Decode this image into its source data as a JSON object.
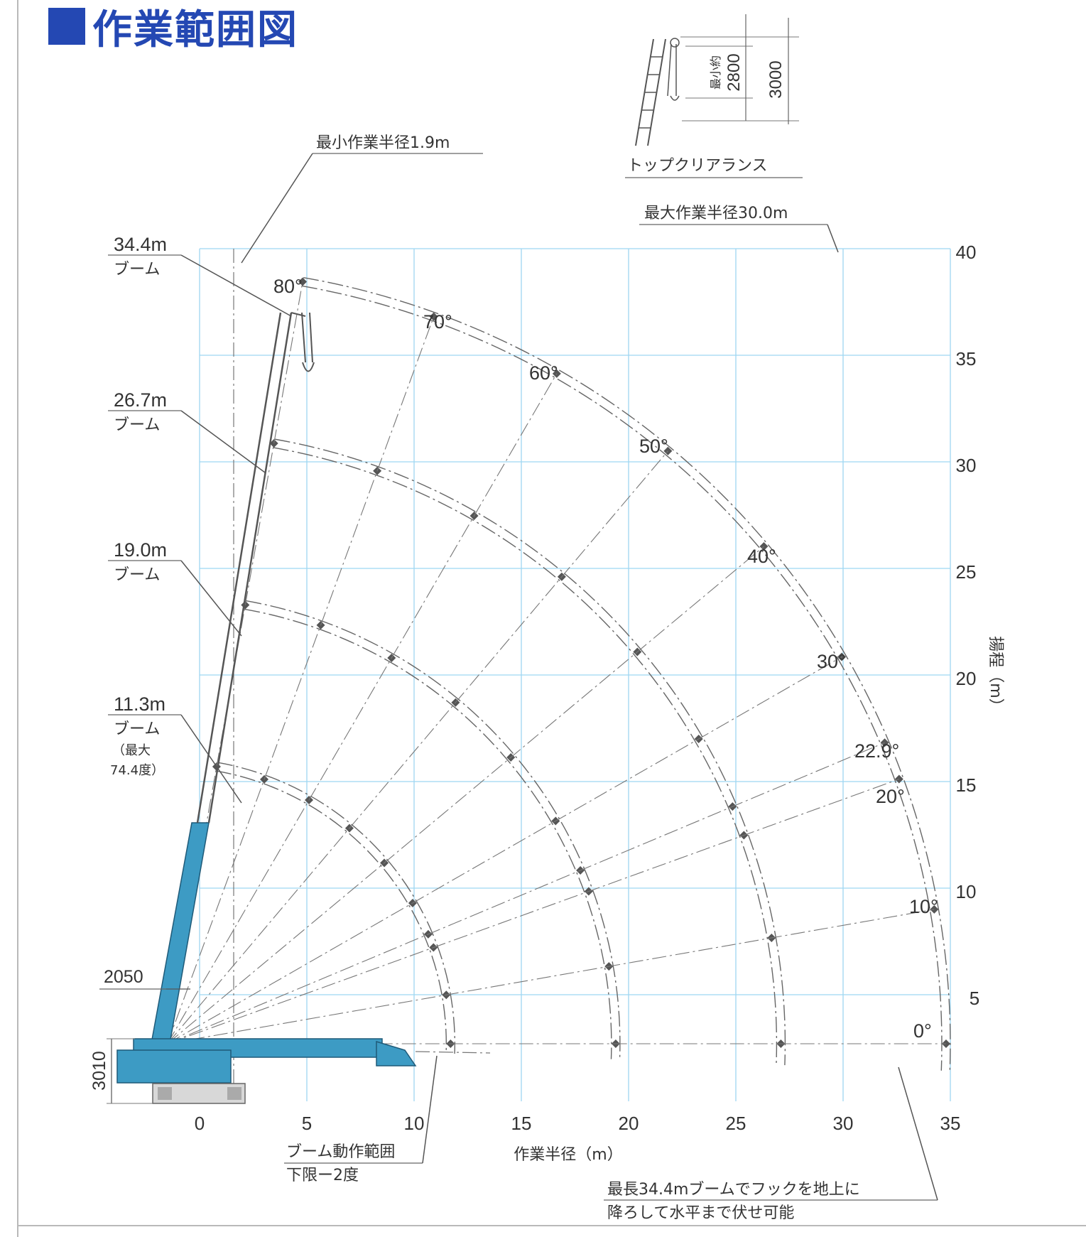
{
  "title": "作業範囲図",
  "chart_data": {
    "type": "diagram",
    "title": "作業範囲図",
    "xlabel": "作業半径（m）",
    "ylabel": "揚程（m）",
    "xlim": [
      0,
      35
    ],
    "ylim": [
      0,
      40
    ],
    "x_ticks": [
      "0",
      "5",
      "10",
      "15",
      "20",
      "25",
      "30",
      "35"
    ],
    "y_ticks": [
      "5",
      "10",
      "15",
      "20",
      "25",
      "30",
      "35",
      "40"
    ],
    "grid": true,
    "booms": [
      {
        "length": "34.4m",
        "label": "34.4m",
        "sub": "ブーム",
        "radius": 36.3
      },
      {
        "length": "26.7m",
        "label": "26.7m",
        "sub": "ブーム",
        "radius": 28.6
      },
      {
        "length": "19.0m",
        "label": "19.0m",
        "sub": "ブーム",
        "radius": 20.9
      },
      {
        "length": "11.3m",
        "label": "11.3m",
        "sub": "ブーム",
        "radius": 13.2,
        "note1": "（最大",
        "note2": "74.4度）"
      }
    ],
    "boom_pivot": [
      -1.5,
      2.7
    ],
    "boom_angles": [
      80,
      70,
      60,
      50,
      40,
      30,
      22.9,
      20,
      10,
      0
    ],
    "angle_labels": [
      "80°",
      "70°",
      "60°",
      "50°",
      "40°",
      "30°",
      "22.9°",
      "20°",
      "10°",
      "0°"
    ]
  },
  "annotations": {
    "min_radius": "最小作業半径1.9m",
    "max_radius": "最大作業半径30.0m",
    "top_clearance": "トップクリアランス",
    "clearance_min": "最小約",
    "clearance_a": "2800",
    "clearance_b": "3000",
    "lower_limit_1": "ブーム動作範囲",
    "lower_limit_2": "下限ー2度",
    "dim_2050": "2050",
    "dim_3010": "3010",
    "note_1": "最長34.4mブームでフックを地上に",
    "note_2": "降ろして水平まで伏せ可能"
  },
  "colors": {
    "title_blue": "#2448b3",
    "crane_body": "#3d9bc4",
    "grid": "#9ed6f2"
  }
}
